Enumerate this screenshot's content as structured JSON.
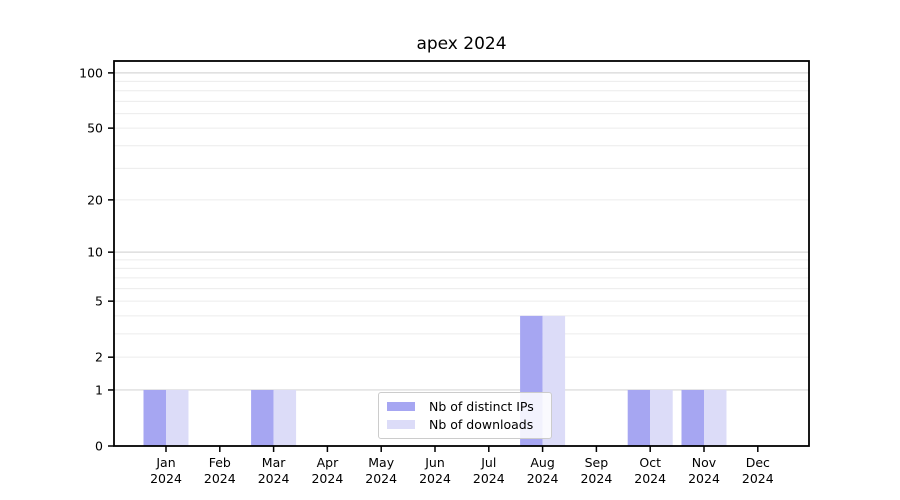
{
  "chart_data": {
    "type": "bar",
    "title": "apex 2024",
    "months": [
      "Jan",
      "Feb",
      "Mar",
      "Apr",
      "May",
      "Jun",
      "Jul",
      "Aug",
      "Sep",
      "Oct",
      "Nov",
      "Dec"
    ],
    "year_label": "2024",
    "series": [
      {
        "name": "Nb of distinct IPs",
        "color": "#a6a6f2",
        "values": [
          1,
          0,
          1,
          0,
          0,
          0,
          0,
          4,
          0,
          1,
          1,
          0
        ]
      },
      {
        "name": "Nb of downloads",
        "color": "#dcdcf8",
        "values": [
          1,
          0,
          1,
          0,
          0,
          0,
          0,
          4,
          0,
          1,
          1,
          0
        ]
      }
    ],
    "y_scale": "log1p",
    "ylim": [
      0,
      116
    ],
    "y_tick_labels": [
      "100",
      "50",
      "20",
      "10",
      "5",
      "2",
      "1",
      "0"
    ],
    "y_tick_values": [
      100,
      50,
      20,
      10,
      5,
      2,
      1,
      0
    ],
    "grid": {
      "major_values": [
        1,
        10,
        100
      ],
      "minor_values": [
        2,
        3,
        4,
        5,
        6,
        7,
        8,
        9,
        20,
        30,
        40,
        50,
        60,
        70,
        80,
        90
      ],
      "major_color": "#d7d7d7",
      "minor_color": "#ececec"
    },
    "axis_color": "#000000",
    "legend_position": "lower-center"
  }
}
